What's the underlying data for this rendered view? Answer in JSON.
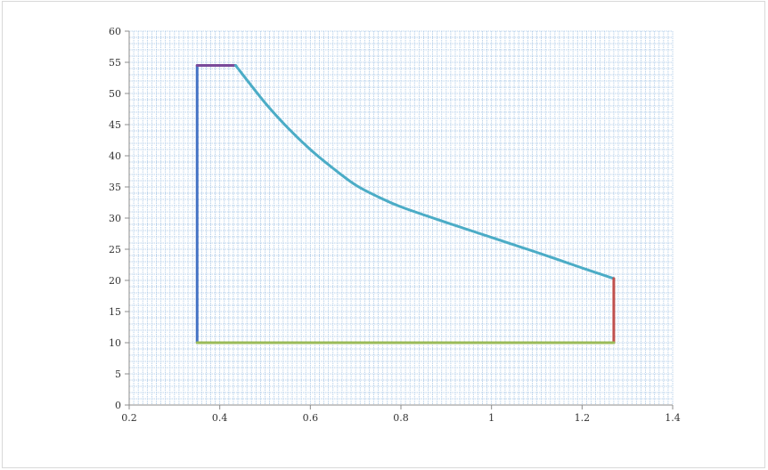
{
  "chart_data": {
    "type": "line",
    "title": "",
    "xlabel": "",
    "ylabel": "",
    "xlim": [
      0.2,
      1.4
    ],
    "ylim": [
      0,
      60
    ],
    "x_ticks": [
      0.2,
      0.4,
      0.6,
      0.8,
      1,
      1.2,
      1.4
    ],
    "x_tick_labels": [
      "0.2",
      "0.4",
      "0.6",
      "0.8",
      "1",
      "1.2",
      "1.4"
    ],
    "y_ticks": [
      0,
      5,
      10,
      15,
      20,
      25,
      30,
      35,
      40,
      45,
      50,
      55,
      60
    ],
    "y_tick_labels": [
      "0",
      "5",
      "10",
      "15",
      "20",
      "25",
      "30",
      "35",
      "40",
      "45",
      "50",
      "55",
      "60"
    ],
    "grid": true,
    "legend": "none",
    "colors": {
      "grid": "#a9c8e6",
      "axis": "#8c8c8c"
    },
    "series": [
      {
        "color": "#4472c4",
        "points": [
          [
            0.35,
            10
          ],
          [
            0.35,
            54.5
          ]
        ]
      },
      {
        "color": "#7a4a9a",
        "points": [
          [
            0.35,
            54.5
          ],
          [
            0.435,
            54.5
          ]
        ]
      },
      {
        "color": "#4bacc6",
        "points": [
          [
            0.435,
            54.5
          ],
          [
            0.5,
            48.5
          ],
          [
            0.55,
            44.5
          ],
          [
            0.6,
            41
          ],
          [
            0.65,
            38
          ],
          [
            0.7,
            35.3
          ],
          [
            0.75,
            33.4
          ],
          [
            0.8,
            31.8
          ],
          [
            0.9,
            29.3
          ],
          [
            1.0,
            26.9
          ],
          [
            1.1,
            24.5
          ],
          [
            1.2,
            22
          ],
          [
            1.27,
            20.3
          ]
        ]
      },
      {
        "color": "#c0504d",
        "points": [
          [
            1.27,
            20.3
          ],
          [
            1.27,
            10
          ]
        ]
      },
      {
        "color": "#9bbb59",
        "points": [
          [
            0.35,
            10
          ],
          [
            1.27,
            10
          ]
        ]
      }
    ]
  }
}
